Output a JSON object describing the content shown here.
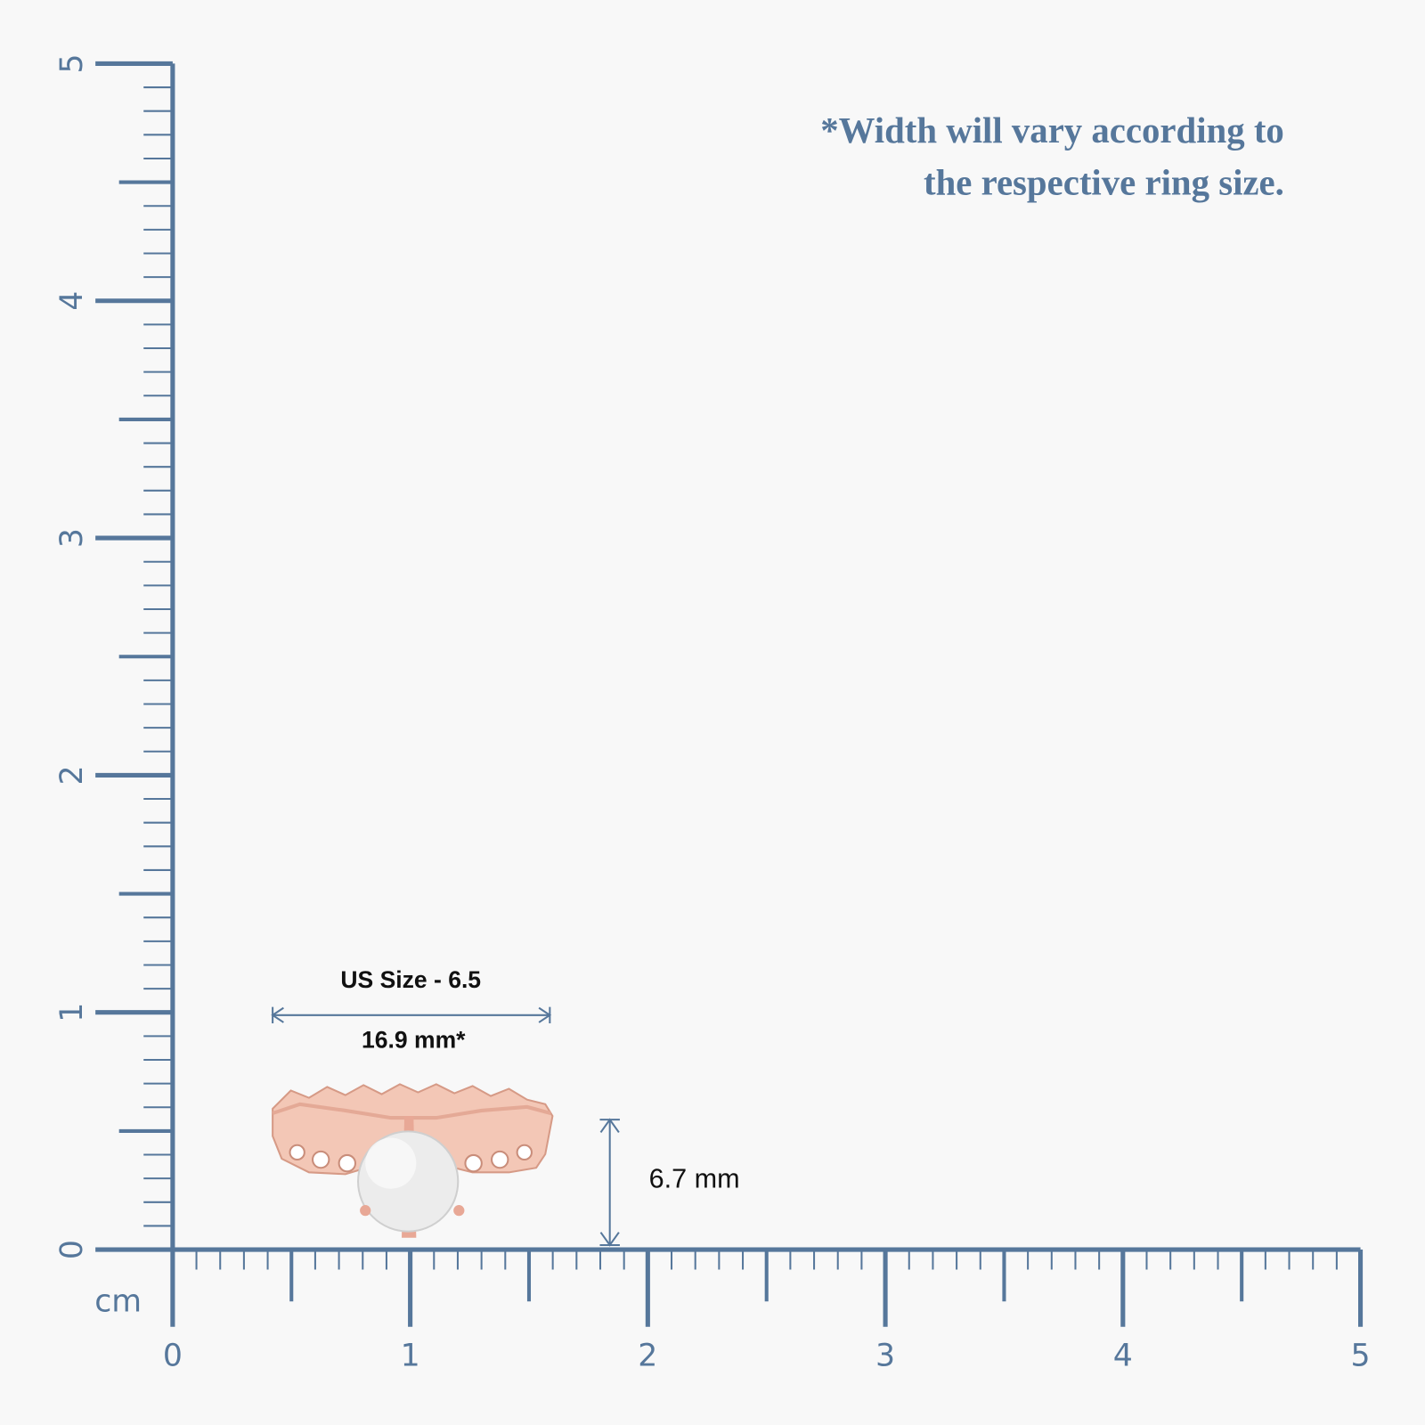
{
  "note": [
    "*Width will vary according to",
    "the respective ring size."
  ],
  "ruler": {
    "unit": "cm",
    "ticks": [
      0,
      1,
      2,
      3,
      4,
      5
    ]
  },
  "ring": {
    "size_label": "US Size - 6.5",
    "width_label": "16.9 mm*",
    "height_label": "6.7 mm"
  }
}
